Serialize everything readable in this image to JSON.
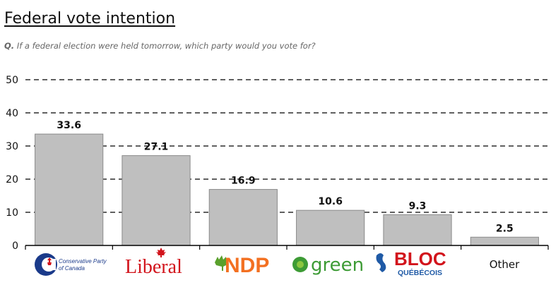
{
  "title": "Federal vote intention",
  "question_prefix": "Q.",
  "question_text": "If a federal election were held tomorrow, which party would you vote for?",
  "chart_data": {
    "type": "bar",
    "categories": [
      "Conservative Party of Canada",
      "Liberal",
      "NDP",
      "green",
      "BLOC QUEBECOIS",
      "Other"
    ],
    "values": [
      33.6,
      27.1,
      16.9,
      10.6,
      9.3,
      2.5
    ],
    "value_labels": [
      "33.6",
      "27.1",
      "16.9",
      "10.6",
      "9.3",
      "2.5"
    ],
    "yticks": [
      "0",
      "10",
      "20",
      "30",
      "40",
      "50"
    ],
    "ylim": [
      0,
      50
    ],
    "grid": true,
    "bar_color": "#bfbfbf",
    "title": "Federal vote intention",
    "xlabel": "",
    "ylabel": ""
  },
  "logos": {
    "cpc_line1": "Conservative Party",
    "cpc_line2": "of Canada",
    "liberal": "Liberal",
    "ndp": "NDP",
    "green": "green",
    "bloc": "BLOC",
    "quebecois": "QUÉBÉCOIS",
    "other": "Other"
  },
  "colors": {
    "cpc_blue": "#1a3a8a",
    "cpc_red": "#d2141c",
    "liberal_red": "#d2141c",
    "ndp_orange": "#f37021",
    "ndp_green": "#5aa02c",
    "green_green": "#3d9b35",
    "bloc_red": "#d2141c",
    "bloc_blue": "#1f5aa6"
  }
}
